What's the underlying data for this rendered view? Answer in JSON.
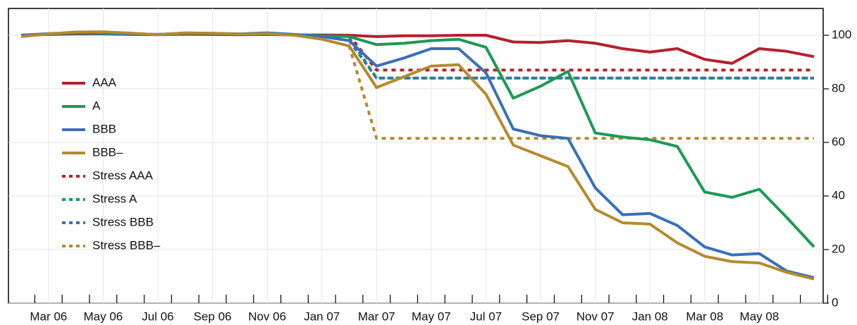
{
  "chart_data": {
    "type": "line",
    "categories": [
      null,
      "Mar 06",
      null,
      "May 06",
      null,
      "Jul 06",
      null,
      "Sep 06",
      null,
      "Nov 06",
      null,
      "Jan 07",
      null,
      "Mar 07",
      null,
      "May 07",
      null,
      "Jul 07",
      null,
      "Sep 07",
      null,
      "Nov 07",
      null,
      "Jan 08",
      null,
      "Mar 08",
      null,
      "May 08",
      null,
      null
    ],
    "series": [
      {
        "name": "AAA",
        "color": "#b5202e",
        "dash": false,
        "values": [
          100,
          100.3,
          100.5,
          100.5,
          100.3,
          100.2,
          100.4,
          100.3,
          100.2,
          100.3,
          100.1,
          100.1,
          100,
          99.5,
          99.8,
          99.8,
          100,
          100,
          97.5,
          97.3,
          98,
          97,
          95,
          93.7,
          95,
          91,
          89.5,
          95,
          94,
          92
        ]
      },
      {
        "name": "A",
        "color": "#1b9a54",
        "dash": false,
        "values": [
          100,
          100.5,
          100.8,
          100.6,
          100.4,
          100.3,
          100.7,
          100.6,
          100.4,
          100.5,
          100.2,
          99.8,
          99.5,
          96.5,
          97,
          98,
          98.5,
          95.5,
          76.5,
          81,
          86.5,
          63.5,
          62,
          61,
          58.5,
          41.5,
          39.5,
          42.5,
          32,
          21
        ]
      },
      {
        "name": "BBB",
        "color": "#3a6fb8",
        "dash": false,
        "values": [
          100,
          100.6,
          101,
          100.8,
          100.5,
          100.3,
          100.8,
          100.7,
          100.5,
          100.9,
          100.3,
          99.5,
          98,
          88.5,
          91.5,
          95,
          95,
          86,
          65,
          62.5,
          61.5,
          43,
          33,
          33.5,
          29,
          21,
          18,
          18.5,
          12,
          9.5
        ]
      },
      {
        "name": "BBB–",
        "color": "#b58a2c",
        "dash": false,
        "values": [
          99.5,
          100.5,
          101.2,
          101.3,
          100.8,
          100.2,
          100.9,
          100.7,
          100.4,
          100.6,
          100,
          98.5,
          96,
          80.5,
          84.5,
          88.5,
          89,
          78,
          59,
          55,
          51,
          35,
          30,
          29.5,
          22.5,
          17.5,
          15.5,
          15,
          11.5,
          9
        ]
      },
      {
        "name": "Stress AAA",
        "color": "#b5202e",
        "dash": true,
        "values": [
          null,
          null,
          null,
          null,
          null,
          null,
          null,
          null,
          null,
          null,
          null,
          null,
          100,
          87,
          87,
          87,
          87,
          87,
          87,
          87,
          87,
          87,
          87,
          87,
          87,
          87,
          87,
          87,
          87,
          87
        ]
      },
      {
        "name": "Stress A",
        "color": "#1b9a54",
        "dash": true,
        "values": [
          null,
          null,
          null,
          null,
          null,
          null,
          null,
          null,
          null,
          null,
          null,
          null,
          99,
          84,
          84,
          84,
          84,
          84,
          84,
          84,
          84,
          84,
          84,
          84,
          84,
          84,
          84,
          84,
          84,
          84
        ]
      },
      {
        "name": "Stress BBB",
        "color": "#3a6fb8",
        "dash": true,
        "values": [
          null,
          null,
          null,
          null,
          null,
          null,
          null,
          null,
          null,
          null,
          null,
          null,
          98,
          84,
          84,
          84,
          84,
          84,
          84,
          84,
          84,
          84,
          84,
          84,
          84,
          84,
          84,
          84,
          84,
          84
        ]
      },
      {
        "name": "Stress BBB–",
        "color": "#b58a2c",
        "dash": true,
        "values": [
          null,
          null,
          null,
          null,
          null,
          null,
          null,
          null,
          null,
          null,
          null,
          null,
          96,
          61.5,
          61.5,
          61.5,
          61.5,
          61.5,
          61.5,
          61.5,
          61.5,
          61.5,
          61.5,
          61.5,
          61.5,
          61.5,
          61.5,
          61.5,
          61.5,
          61.5
        ]
      }
    ],
    "ylim": [
      0,
      110
    ],
    "yticks": [
      0,
      20,
      40,
      60,
      80,
      100
    ],
    "grid": true,
    "y_axis_side": "right",
    "legend": "left"
  }
}
